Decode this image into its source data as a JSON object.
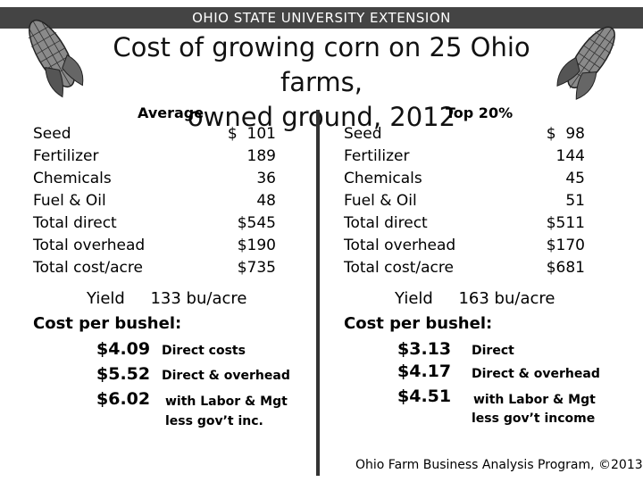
{
  "header": {
    "banner": "OHIO STATE UNIVERSITY EXTENSION",
    "title_line1": "Cost of growing corn on 25 Ohio farms,",
    "title_line2": "owned ground, 2012"
  },
  "average": {
    "heading": "Average",
    "rows": [
      {
        "label": "Seed",
        "value": "$  101"
      },
      {
        "label": "Fertilizer",
        "value": "189"
      },
      {
        "label": "Chemicals",
        "value": "36"
      },
      {
        "label": "Fuel & Oil",
        "value": "48"
      },
      {
        "label": "Total direct",
        "value": "$545"
      },
      {
        "label": "Total overhead",
        "value": "$190"
      },
      {
        "label": "Total cost/acre",
        "value": "$735"
      }
    ],
    "yield_label": "Yield",
    "yield_value": "133 bu/acre",
    "cost_per_bushel_label": "Cost per bushel:",
    "costs": [
      {
        "value": "$4.09",
        "desc": "Direct costs"
      },
      {
        "value": "$5.52",
        "desc": "Direct & overhead"
      },
      {
        "value": "$6.02",
        "desc": "with Labor & Mgt",
        "desc2": "less gov’t inc."
      }
    ]
  },
  "top20": {
    "heading": "Top 20%",
    "rows": [
      {
        "label": "Seed",
        "value": "$  98"
      },
      {
        "label": "Fertilizer",
        "value": "144"
      },
      {
        "label": "Chemicals",
        "value": "45"
      },
      {
        "label": "Fuel & Oil",
        "value": "51"
      },
      {
        "label": "Total direct",
        "value": "$511"
      },
      {
        "label": "Total overhead",
        "value": "$170"
      },
      {
        "label": "Total cost/acre",
        "value": "$681"
      }
    ],
    "yield_label": "Yield",
    "yield_value": "163 bu/acre",
    "cost_per_bushel_label": "Cost per bushel:",
    "costs": [
      {
        "value": "$3.13",
        "desc": "Direct"
      },
      {
        "value": "$4.17",
        "desc": "Direct & overhead"
      },
      {
        "value": "$4.51",
        "desc": "with Labor & Mgt",
        "desc2": "less gov’t income"
      }
    ]
  },
  "footer": "Ohio Farm Business Analysis Program, ©2013",
  "icons": [
    "corn-cob-icon",
    "corn-cob-icon"
  ]
}
